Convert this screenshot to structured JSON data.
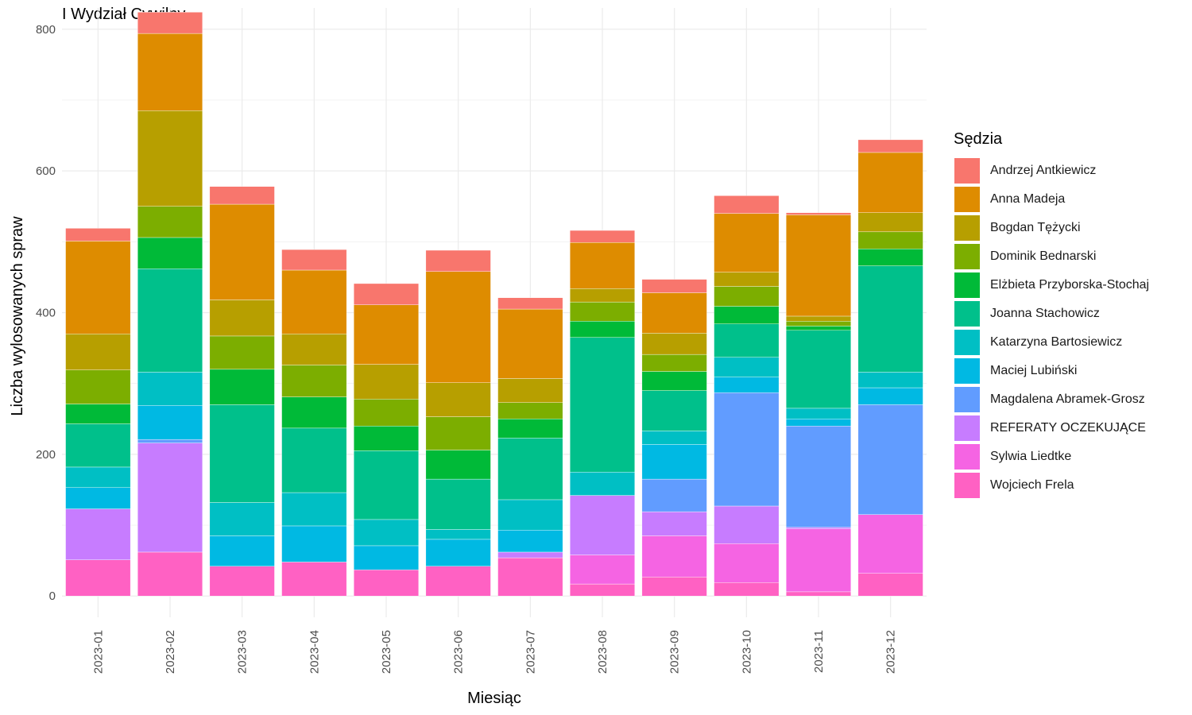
{
  "chart_data": {
    "type": "bar",
    "stacked": true,
    "title": "I Wydział Cywilny",
    "xlabel": "Miesiąc",
    "ylabel": "Liczba wylosowanych spraw",
    "ylim": [
      -30,
      830
    ],
    "yticks": [
      0,
      200,
      400,
      600,
      800
    ],
    "grid": true,
    "legend_position": "right",
    "legend_title": "Sędzia",
    "categories": [
      "2023-01",
      "2023-02",
      "2023-03",
      "2023-04",
      "2023-05",
      "2023-06",
      "2023-07",
      "2023-08",
      "2023-09",
      "2023-10",
      "2023-11",
      "2023-12"
    ],
    "series": [
      {
        "name": "Wojciech Frela",
        "color": "#FF61C3",
        "values": [
          51,
          62,
          42,
          48,
          37,
          42,
          54,
          17,
          27,
          19,
          6,
          32
        ]
      },
      {
        "name": "Sylwia Liedtke",
        "color": "#F564E3",
        "values": [
          0,
          0,
          0,
          0,
          0,
          0,
          0,
          41,
          58,
          55,
          89,
          83
        ]
      },
      {
        "name": "REFERATY OCZEKUJĄCE",
        "color": "#C77CFF",
        "values": [
          72,
          154,
          0,
          0,
          0,
          0,
          8,
          84,
          34,
          53,
          2,
          0
        ]
      },
      {
        "name": "Magdalena Abramek-Grosz",
        "color": "#619CFF",
        "values": [
          0,
          5,
          0,
          0,
          0,
          0,
          0,
          0,
          46,
          160,
          143,
          155
        ]
      },
      {
        "name": "Maciej Lubiński",
        "color": "#00B9E3",
        "values": [
          30,
          48,
          43,
          51,
          34,
          38,
          31,
          0,
          49,
          22,
          10,
          24
        ]
      },
      {
        "name": "Katarzyna Bartosiewicz",
        "color": "#00BFC4",
        "values": [
          29,
          47,
          47,
          47,
          37,
          14,
          43,
          33,
          19,
          28,
          15,
          22
        ]
      },
      {
        "name": "Joanna Stachowicz",
        "color": "#00C08B",
        "values": [
          61,
          146,
          138,
          91,
          97,
          71,
          87,
          190,
          57,
          47,
          110,
          150
        ]
      },
      {
        "name": "Elżbieta Przyborska-Stochaj",
        "color": "#00BA38",
        "values": [
          28,
          44,
          50,
          44,
          35,
          41,
          27,
          23,
          27,
          25,
          6,
          24
        ]
      },
      {
        "name": "Dominik Bednarski",
        "color": "#7CAE00",
        "values": [
          48,
          44,
          47,
          45,
          38,
          47,
          23,
          27,
          24,
          28,
          7,
          24
        ]
      },
      {
        "name": "Bogdan Tężycki",
        "color": "#B79F00",
        "values": [
          51,
          135,
          51,
          44,
          49,
          48,
          34,
          19,
          30,
          20,
          7,
          27
        ]
      },
      {
        "name": "Anna Madeja",
        "color": "#DE8C00",
        "values": [
          131,
          109,
          135,
          90,
          84,
          157,
          98,
          65,
          57,
          83,
          143,
          85
        ]
      },
      {
        "name": "Andrzej Antkiewicz",
        "color": "#F8766D",
        "values": [
          18,
          30,
          25,
          29,
          30,
          30,
          16,
          17,
          19,
          25,
          3,
          18
        ]
      }
    ]
  }
}
